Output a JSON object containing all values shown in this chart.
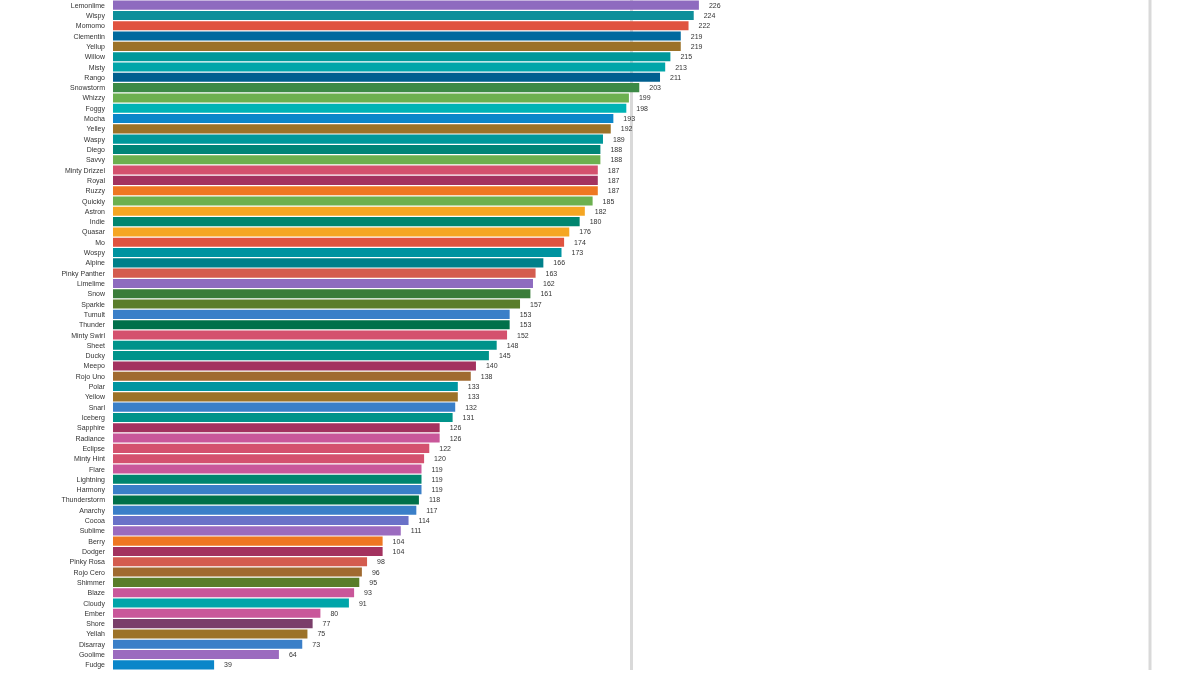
{
  "chart_data": {
    "type": "bar",
    "orientation": "horizontal",
    "data_labels": true,
    "grid": false,
    "tick_labels": "y",
    "categories": [
      "Lemonlime",
      "Wispy",
      "Momomo",
      "Clementin",
      "Yellup",
      "Willow",
      "Misty",
      "Rango",
      "Snowstorm",
      "Whizzy",
      "Foggy",
      "Mocha",
      "Yelley",
      "Waspy",
      "Diego",
      "Savvy",
      "Minty Drizzel",
      "Royal",
      "Ruzzy",
      "Quickly",
      "Astron",
      "Indie",
      "Quasar",
      "Mo",
      "Wospy",
      "Alpine",
      "Pinky Panther",
      "Limelime",
      "Snow",
      "Sparkle",
      "Tumult",
      "Thunder",
      "Minty Swirl",
      "Sheet",
      "Ducky",
      "Meepo",
      "Rojo Uno",
      "Polar",
      "Yellow",
      "Snarl",
      "Iceberg",
      "Sapphire",
      "Radiance",
      "Eclipse",
      "Minty Hint",
      "Flare",
      "Lightning",
      "Harmony",
      "Thunderstorm",
      "Anarchy",
      "Cocoa",
      "Sublime",
      "Berry",
      "Dodger",
      "Pinky Rosa",
      "Rojo Cero",
      "Shimmer",
      "Blaze",
      "Cloudy",
      "Ember",
      "Shore",
      "Yellah",
      "Disarray",
      "Goolime",
      "Fudge"
    ],
    "values": [
      226,
      224,
      222,
      219,
      219,
      215,
      213,
      211,
      203,
      199,
      198,
      193,
      192,
      189,
      188,
      188,
      187,
      187,
      187,
      185,
      182,
      180,
      176,
      174,
      173,
      166,
      163,
      162,
      161,
      157,
      153,
      153,
      152,
      148,
      145,
      140,
      138,
      133,
      133,
      132,
      131,
      126,
      126,
      122,
      120,
      119,
      119,
      119,
      118,
      117,
      114,
      111,
      104,
      104,
      98,
      96,
      95,
      93,
      91,
      80,
      77,
      75,
      73,
      64,
      39
    ],
    "colors": [
      "#8e6bbf",
      "#0e8f9a",
      "#e0533f",
      "#01699e",
      "#9c7228",
      "#00989a",
      "#00a5a9",
      "#005f8f",
      "#3c8a46",
      "#6cb04f",
      "#00b3b5",
      "#0b86c9",
      "#9c7228",
      "#00989a",
      "#008577",
      "#6cb04f",
      "#d4516e",
      "#a3325f",
      "#ee7722",
      "#6cb04f",
      "#f5a623",
      "#00856f",
      "#f5a623",
      "#e0533f",
      "#0093a0",
      "#00808a",
      "#d45c4f",
      "#8e6bbf",
      "#3a7d3a",
      "#5a7d2a",
      "#3a7fc8",
      "#00704a",
      "#d4516e",
      "#00938a",
      "#00938a",
      "#a3325f",
      "#a06a30",
      "#0095a0",
      "#9c7228",
      "#3a7fc8",
      "#00938a",
      "#a3325f",
      "#c9579a",
      "#d4516e",
      "#d4516e",
      "#c9579a",
      "#00856f",
      "#3a7fc8",
      "#00704a",
      "#3a7fc8",
      "#6a72c8",
      "#9b6bbf",
      "#ee7722",
      "#a3325f",
      "#d45c4f",
      "#a06a30",
      "#5a7d2a",
      "#c9579a",
      "#00a5a9",
      "#c9579a",
      "#7a3e6a",
      "#9c7228",
      "#3a7fc8",
      "#9b6bbf",
      "#0b86c9"
    ],
    "xlim": [
      0,
      400
    ],
    "ref_lines": [
      {
        "axis": "x",
        "value": 200,
        "color": "#d9d9d9"
      },
      {
        "axis": "x",
        "value": 400,
        "color": "#d9d9d9"
      }
    ]
  }
}
